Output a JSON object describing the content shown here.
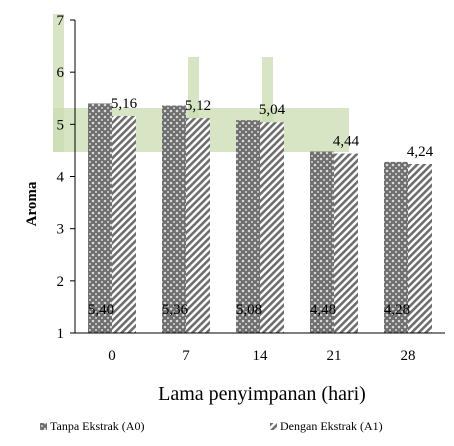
{
  "chart_data": {
    "type": "bar",
    "title": "",
    "xlabel": "Lama penyimpanan (hari)",
    "ylabel": "Aroma",
    "ylim": [
      1,
      7
    ],
    "yticks": [
      "1",
      "2",
      "3",
      "4",
      "5",
      "6",
      "7"
    ],
    "categories": [
      "0",
      "7",
      "14",
      "21",
      "28"
    ],
    "series": [
      {
        "name": "Tanpa Ekstrak (A0)",
        "values": [
          5.4,
          5.36,
          5.08,
          4.48,
          4.28
        ],
        "labels": [
          "5,40",
          "5,36",
          "5,08",
          "4,48",
          "4,28"
        ],
        "color": "#7f7f7f",
        "pattern": "dots"
      },
      {
        "name": "Dengan Ekstrak (A1)",
        "values": [
          5.16,
          5.12,
          5.04,
          4.44,
          4.24
        ],
        "labels": [
          "5,16",
          "5,12",
          "5,04",
          "4,44",
          "4,24"
        ],
        "color": "#7f7f7f",
        "pattern": "diagonal"
      }
    ],
    "grid": false,
    "legend": "bottom"
  },
  "colors": {
    "highlight": "#d6e4c4",
    "bar": "#7f7f7f",
    "axis": "#000000"
  }
}
